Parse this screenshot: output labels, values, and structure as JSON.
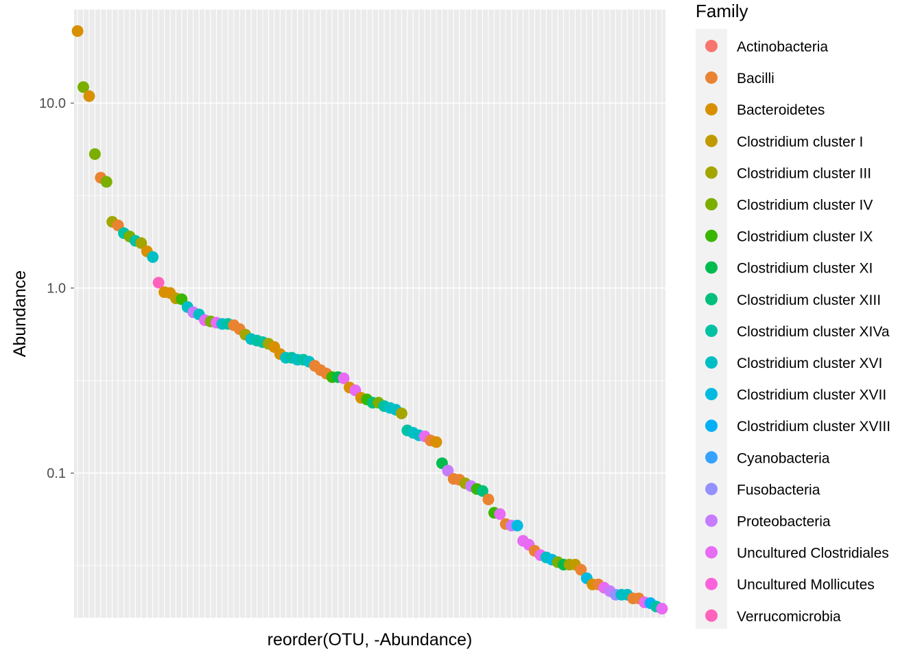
{
  "chart_data": {
    "type": "scatter",
    "xlabel": "reorder(OTU, -Abundance)",
    "ylabel": "Abundance",
    "y_scale": "log10",
    "ylim": [
      0.0165,
      32
    ],
    "y_ticks": [
      0.1,
      1.0,
      10.0
    ],
    "y_tick_labels": [
      "0.1",
      "1.0",
      "10.0"
    ],
    "x_tick_labels_shown": false,
    "grid": true,
    "legend": {
      "title": "Family",
      "placement": "right",
      "entries": [
        {
          "name": "Actinobacteria",
          "color": "#F8766D"
        },
        {
          "name": "Bacilli",
          "color": "#EA8331"
        },
        {
          "name": "Bacteroidetes",
          "color": "#D89000"
        },
        {
          "name": "Clostridium cluster I",
          "color": "#C09B00"
        },
        {
          "name": "Clostridium cluster III",
          "color": "#A3A500"
        },
        {
          "name": "Clostridium cluster IV",
          "color": "#7CAE00"
        },
        {
          "name": "Clostridium cluster IX",
          "color": "#39B600"
        },
        {
          "name": "Clostridium cluster XI",
          "color": "#00BB4E"
        },
        {
          "name": "Clostridium cluster XIII",
          "color": "#00BF7D"
        },
        {
          "name": "Clostridium cluster XIVa",
          "color": "#00C1A3"
        },
        {
          "name": "Clostridium cluster XVI",
          "color": "#00BFC4"
        },
        {
          "name": "Clostridium cluster XVII",
          "color": "#00BAE0"
        },
        {
          "name": "Clostridium cluster XVIII",
          "color": "#00B0F6"
        },
        {
          "name": "Cyanobacteria",
          "color": "#35A2FF"
        },
        {
          "name": "Fusobacteria",
          "color": "#9590FF"
        },
        {
          "name": "Proteobacteria",
          "color": "#C77CFF"
        },
        {
          "name": "Uncultured Clostridiales",
          "color": "#E76BF3"
        },
        {
          "name": "Uncultured Mollicutes",
          "color": "#FA62DB"
        },
        {
          "name": "Verrucomicrobia",
          "color": "#FF62BC"
        }
      ]
    },
    "x_count": 102,
    "points": [
      {
        "x": 1,
        "y": 24.5,
        "c": 2
      },
      {
        "x": 2,
        "y": 12.2,
        "c": 5
      },
      {
        "x": 3,
        "y": 10.9,
        "c": 2
      },
      {
        "x": 4,
        "y": 5.3,
        "c": 5
      },
      {
        "x": 5,
        "y": 3.95,
        "c": 1
      },
      {
        "x": 6,
        "y": 3.75,
        "c": 5
      },
      {
        "x": 7,
        "y": 2.28,
        "c": 4
      },
      {
        "x": 8,
        "y": 2.18,
        "c": 1
      },
      {
        "x": 9,
        "y": 1.98,
        "c": 9
      },
      {
        "x": 10,
        "y": 1.9,
        "c": 5
      },
      {
        "x": 11,
        "y": 1.8,
        "c": 9
      },
      {
        "x": 12,
        "y": 1.75,
        "c": 4
      },
      {
        "x": 13,
        "y": 1.58,
        "c": 2
      },
      {
        "x": 14,
        "y": 1.47,
        "c": 10
      },
      {
        "x": 15,
        "y": 1.07,
        "c": 18
      },
      {
        "x": 16,
        "y": 0.95,
        "c": 2
      },
      {
        "x": 17,
        "y": 0.94,
        "c": 2
      },
      {
        "x": 18,
        "y": 0.88,
        "c": 3
      },
      {
        "x": 19,
        "y": 0.87,
        "c": 6
      },
      {
        "x": 20,
        "y": 0.79,
        "c": 10
      },
      {
        "x": 21,
        "y": 0.74,
        "c": 15
      },
      {
        "x": 22,
        "y": 0.72,
        "c": 10
      },
      {
        "x": 23,
        "y": 0.67,
        "c": 16
      },
      {
        "x": 24,
        "y": 0.66,
        "c": 5
      },
      {
        "x": 25,
        "y": 0.65,
        "c": 16
      },
      {
        "x": 26,
        "y": 0.64,
        "c": 10
      },
      {
        "x": 27,
        "y": 0.64,
        "c": 9
      },
      {
        "x": 28,
        "y": 0.63,
        "c": 1
      },
      {
        "x": 29,
        "y": 0.6,
        "c": 1
      },
      {
        "x": 30,
        "y": 0.56,
        "c": 4
      },
      {
        "x": 31,
        "y": 0.53,
        "c": 10
      },
      {
        "x": 32,
        "y": 0.52,
        "c": 9
      },
      {
        "x": 33,
        "y": 0.51,
        "c": 9
      },
      {
        "x": 34,
        "y": 0.5,
        "c": 4
      },
      {
        "x": 35,
        "y": 0.48,
        "c": 2
      },
      {
        "x": 36,
        "y": 0.44,
        "c": 2
      },
      {
        "x": 37,
        "y": 0.42,
        "c": 10
      },
      {
        "x": 38,
        "y": 0.42,
        "c": 9
      },
      {
        "x": 39,
        "y": 0.41,
        "c": 10
      },
      {
        "x": 40,
        "y": 0.41,
        "c": 9
      },
      {
        "x": 41,
        "y": 0.4,
        "c": 10
      },
      {
        "x": 42,
        "y": 0.38,
        "c": 1
      },
      {
        "x": 43,
        "y": 0.36,
        "c": 1
      },
      {
        "x": 44,
        "y": 0.345,
        "c": 1
      },
      {
        "x": 45,
        "y": 0.33,
        "c": 6
      },
      {
        "x": 46,
        "y": 0.33,
        "c": 7
      },
      {
        "x": 47,
        "y": 0.325,
        "c": 16
      },
      {
        "x": 48,
        "y": 0.29,
        "c": 2
      },
      {
        "x": 49,
        "y": 0.28,
        "c": 16
      },
      {
        "x": 50,
        "y": 0.255,
        "c": 2
      },
      {
        "x": 51,
        "y": 0.25,
        "c": 6
      },
      {
        "x": 52,
        "y": 0.24,
        "c": 8
      },
      {
        "x": 53,
        "y": 0.24,
        "c": 5
      },
      {
        "x": 54,
        "y": 0.23,
        "c": 9
      },
      {
        "x": 55,
        "y": 0.225,
        "c": 10
      },
      {
        "x": 56,
        "y": 0.22,
        "c": 10
      },
      {
        "x": 57,
        "y": 0.21,
        "c": 4
      },
      {
        "x": 58,
        "y": 0.17,
        "c": 9
      },
      {
        "x": 59,
        "y": 0.165,
        "c": 10
      },
      {
        "x": 60,
        "y": 0.16,
        "c": 10
      },
      {
        "x": 61,
        "y": 0.158,
        "c": 16
      },
      {
        "x": 62,
        "y": 0.15,
        "c": 1
      },
      {
        "x": 63,
        "y": 0.147,
        "c": 2
      },
      {
        "x": 64,
        "y": 0.113,
        "c": 7
      },
      {
        "x": 65,
        "y": 0.103,
        "c": 15
      },
      {
        "x": 66,
        "y": 0.093,
        "c": 1
      },
      {
        "x": 67,
        "y": 0.092,
        "c": 1
      },
      {
        "x": 68,
        "y": 0.088,
        "c": 4
      },
      {
        "x": 69,
        "y": 0.085,
        "c": 15
      },
      {
        "x": 70,
        "y": 0.082,
        "c": 6
      },
      {
        "x": 71,
        "y": 0.08,
        "c": 8
      },
      {
        "x": 72,
        "y": 0.072,
        "c": 1
      },
      {
        "x": 73,
        "y": 0.061,
        "c": 6
      },
      {
        "x": 74,
        "y": 0.06,
        "c": 16
      },
      {
        "x": 75,
        "y": 0.053,
        "c": 1
      },
      {
        "x": 76,
        "y": 0.052,
        "c": 15
      },
      {
        "x": 77,
        "y": 0.052,
        "c": 11
      },
      {
        "x": 78,
        "y": 0.043,
        "c": 16
      },
      {
        "x": 79,
        "y": 0.041,
        "c": 16
      },
      {
        "x": 80,
        "y": 0.038,
        "c": 1
      },
      {
        "x": 81,
        "y": 0.036,
        "c": 16
      },
      {
        "x": 82,
        "y": 0.035,
        "c": 10
      },
      {
        "x": 83,
        "y": 0.034,
        "c": 11
      },
      {
        "x": 84,
        "y": 0.033,
        "c": 5
      },
      {
        "x": 85,
        "y": 0.032,
        "c": 7
      },
      {
        "x": 86,
        "y": 0.032,
        "c": 4
      },
      {
        "x": 87,
        "y": 0.032,
        "c": 3
      },
      {
        "x": 88,
        "y": 0.03,
        "c": 1
      },
      {
        "x": 89,
        "y": 0.027,
        "c": 11
      },
      {
        "x": 90,
        "y": 0.025,
        "c": 2
      },
      {
        "x": 91,
        "y": 0.025,
        "c": 1
      },
      {
        "x": 92,
        "y": 0.024,
        "c": 16
      },
      {
        "x": 93,
        "y": 0.023,
        "c": 15
      },
      {
        "x": 94,
        "y": 0.022,
        "c": 14
      },
      {
        "x": 95,
        "y": 0.022,
        "c": 10
      },
      {
        "x": 96,
        "y": 0.022,
        "c": 10
      },
      {
        "x": 97,
        "y": 0.021,
        "c": 1
      },
      {
        "x": 98,
        "y": 0.021,
        "c": 1
      },
      {
        "x": 99,
        "y": 0.02,
        "c": 16
      },
      {
        "x": 100,
        "y": 0.0198,
        "c": 12
      },
      {
        "x": 101,
        "y": 0.019,
        "c": 9
      },
      {
        "x": 102,
        "y": 0.0185,
        "c": 16
      }
    ]
  }
}
